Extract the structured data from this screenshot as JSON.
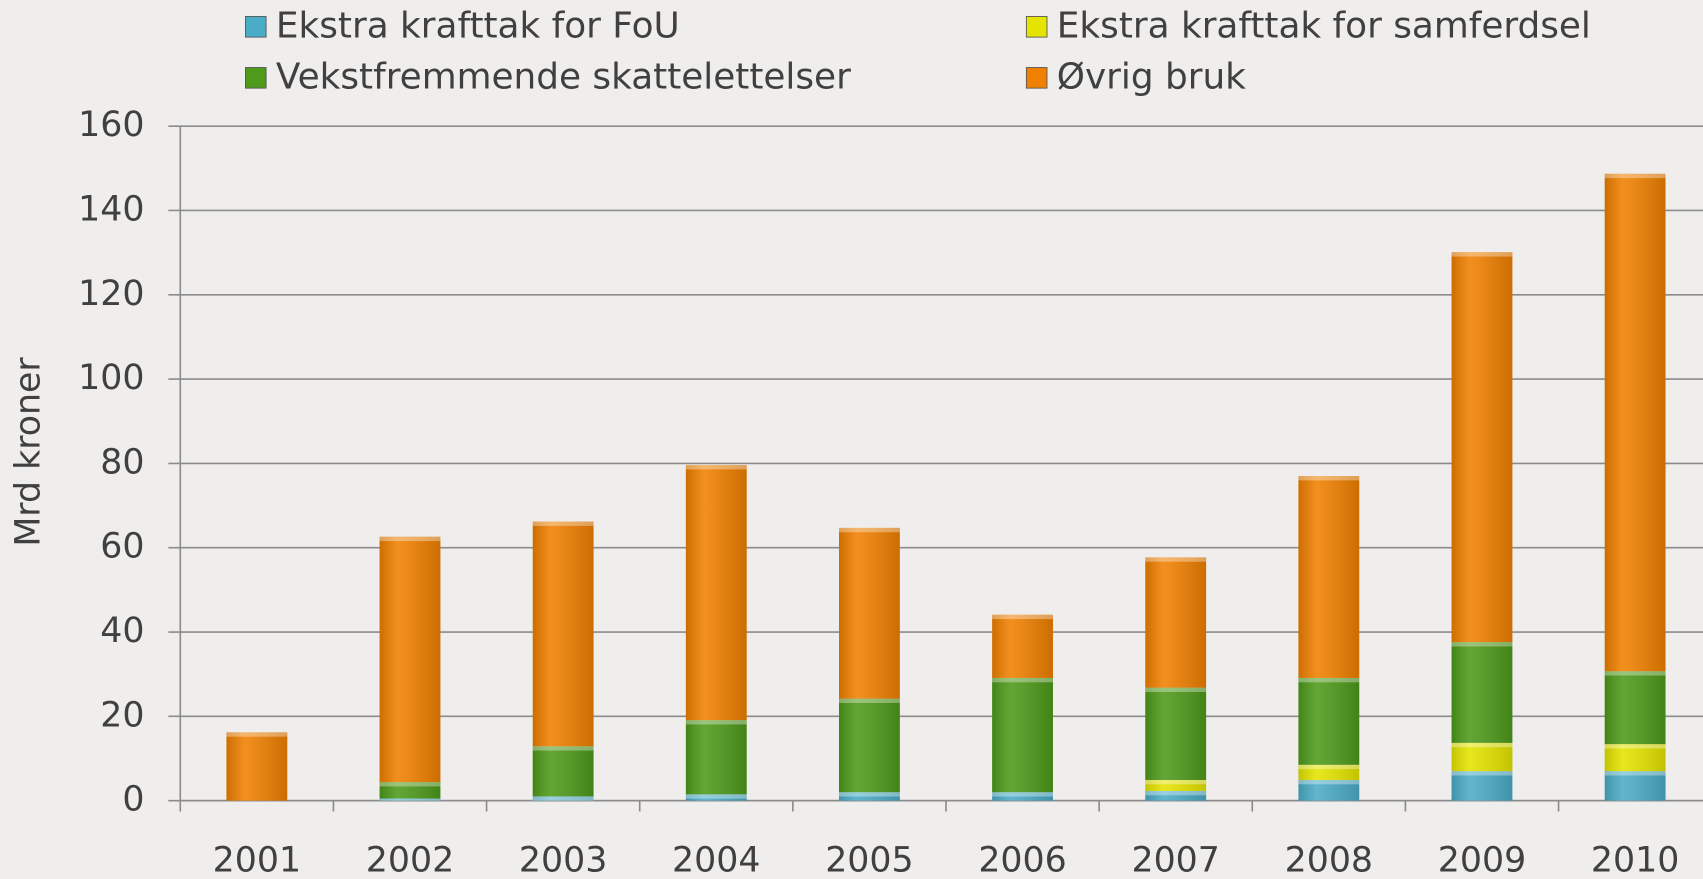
{
  "chart_data": {
    "type": "stacked_bar",
    "y_label": "Mrd kroner",
    "categories": [
      "2001",
      "2002",
      "2003",
      "2004",
      "2005",
      "2006",
      "2007",
      "2008",
      "2009",
      "2010"
    ],
    "series": [
      {
        "name": "Ekstra krafttak for FoU",
        "color": "#4bacc6",
        "values": [
          0,
          0.5,
          1,
          1.5,
          2,
          2,
          2.3,
          4.9,
          7,
          7
        ]
      },
      {
        "name": "Ekstra krafttak for samferdsel",
        "color": "#e4e400",
        "values": [
          0,
          0,
          0,
          0,
          0,
          0,
          2.6,
          3.6,
          6.7,
          6.4
        ]
      },
      {
        "name": "Vekstfremmende skattelettelser",
        "color": "#4e9a1a",
        "values": [
          0,
          3.9,
          11.9,
          17.6,
          22.2,
          27.1,
          21.9,
          20.6,
          23.9,
          17.3
        ]
      },
      {
        "name": "Øvrig bruk",
        "color": "#f08000",
        "values": [
          16.2,
          58.2,
          53.3,
          60.5,
          40.5,
          15,
          30.9,
          47.9,
          92.5,
          118
        ]
      }
    ],
    "ylim": [
      0,
      160
    ],
    "yticks": [
      0,
      20,
      40,
      60,
      80,
      100,
      120,
      140,
      160
    ],
    "grid": true
  }
}
